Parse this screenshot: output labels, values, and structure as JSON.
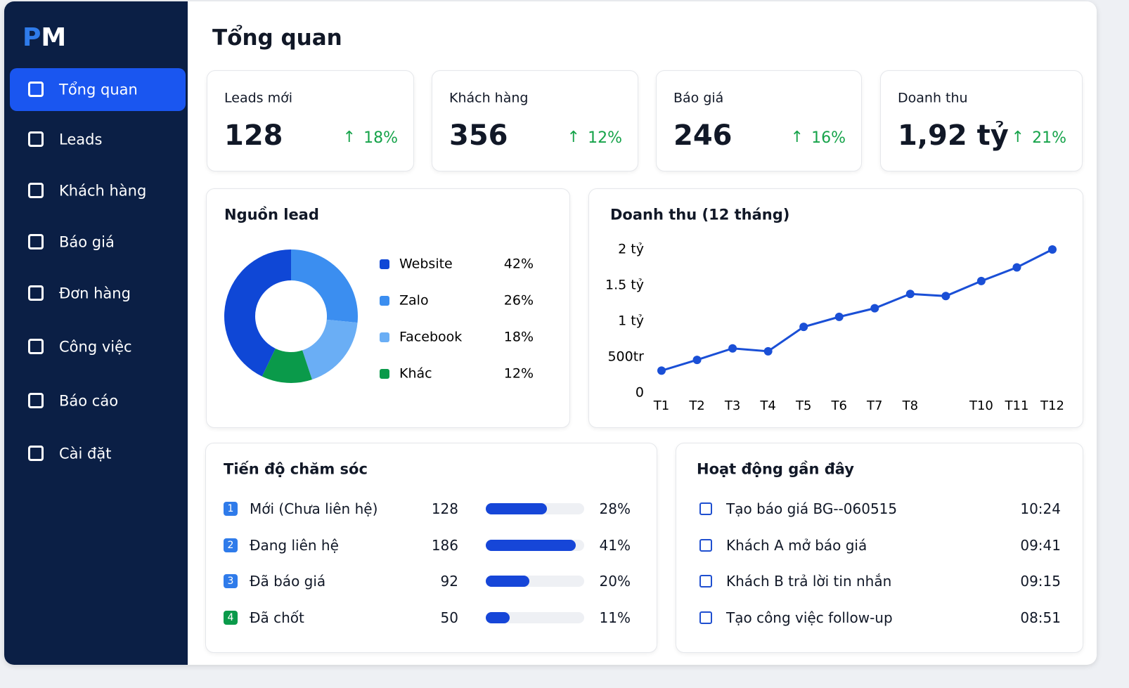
{
  "brand": [
    "P",
    "M"
  ],
  "nav": {
    "active": 0,
    "items": [
      "Tổng quan",
      "Leads",
      "Khách hàng",
      "Báo giá",
      "Đơn hàng",
      "Công việc",
      "Báo cáo",
      "Cài đặt"
    ]
  },
  "page_title": "Tổng quan",
  "kpis": [
    {
      "label": "Leads mới",
      "value": "128",
      "change": "18%"
    },
    {
      "label": "Khách hàng",
      "value": "356",
      "change": "12%"
    },
    {
      "label": "Báo giá",
      "value": "246",
      "change": "16%"
    },
    {
      "label": "Doanh thu",
      "value": "1,92 tỷ",
      "change": "21%"
    }
  ],
  "lead_sources": {
    "type": "pie",
    "title": "Nguồn lead",
    "categories": [
      "Website",
      "Zalo",
      "Facebook",
      "Khác"
    ],
    "values": [
      42,
      26,
      18,
      12
    ],
    "value_labels": [
      "42%",
      "26%",
      "18%",
      "12%"
    ],
    "colors": [
      "#0f47d6",
      "#3b8ef0",
      "#6aaef5",
      "#0a9a4a"
    ]
  },
  "revenue": {
    "type": "line",
    "title": "Doanh thu (12 tháng)",
    "categories": [
      "T1",
      "T2",
      "T3",
      "T4",
      "T5",
      "T6",
      "T7",
      "T8",
      null,
      "T10",
      "T11",
      "T12"
    ],
    "values": [
      0.31,
      0.46,
      0.62,
      0.58,
      0.92,
      1.06,
      1.18,
      1.38,
      1.35,
      1.56,
      1.75,
      2.0
    ],
    "color": "#1a4fd6",
    "ylim": [
      0,
      2
    ],
    "yticks": [
      0,
      {
        "value": 0.5,
        "label": "500tr"
      },
      {
        "value": 1,
        "label": "1 tỷ"
      },
      {
        "value": 1.5,
        "label": "1.5 tỷ"
      },
      {
        "value": 2,
        "label": "2 tỷ"
      }
    ],
    "grid": false
  },
  "care": {
    "type": "bar",
    "title": "Tiến độ chăm sóc",
    "badges": [
      "1",
      "2",
      "3",
      "4"
    ],
    "badge_colors": [
      "#2f7bea",
      "#2f7bea",
      "#2f7bea",
      "#0a9a4a"
    ],
    "categories": [
      "Mới (Chưa liên hệ)",
      "Đang liên hệ",
      "Đã báo giá",
      "Đã chốt"
    ],
    "counts": [
      128,
      186,
      92,
      50
    ],
    "values": [
      28,
      41,
      20,
      11
    ],
    "value_labels": [
      "28%",
      "41%",
      "20%",
      "11%"
    ],
    "xlim": [
      0,
      45
    ],
    "color": "#1646d8"
  },
  "activity": {
    "title": "Hoạt động gần đây",
    "items": [
      {
        "text": "Tạo báo giá BG--060515",
        "time": "10:24"
      },
      {
        "text": "Khách A mở báo giá",
        "time": "09:41"
      },
      {
        "text": "Khách B trả lời tin nhắn",
        "time": "09:15"
      },
      {
        "text": "Tạo công việc follow-up",
        "time": "08:51"
      }
    ]
  }
}
